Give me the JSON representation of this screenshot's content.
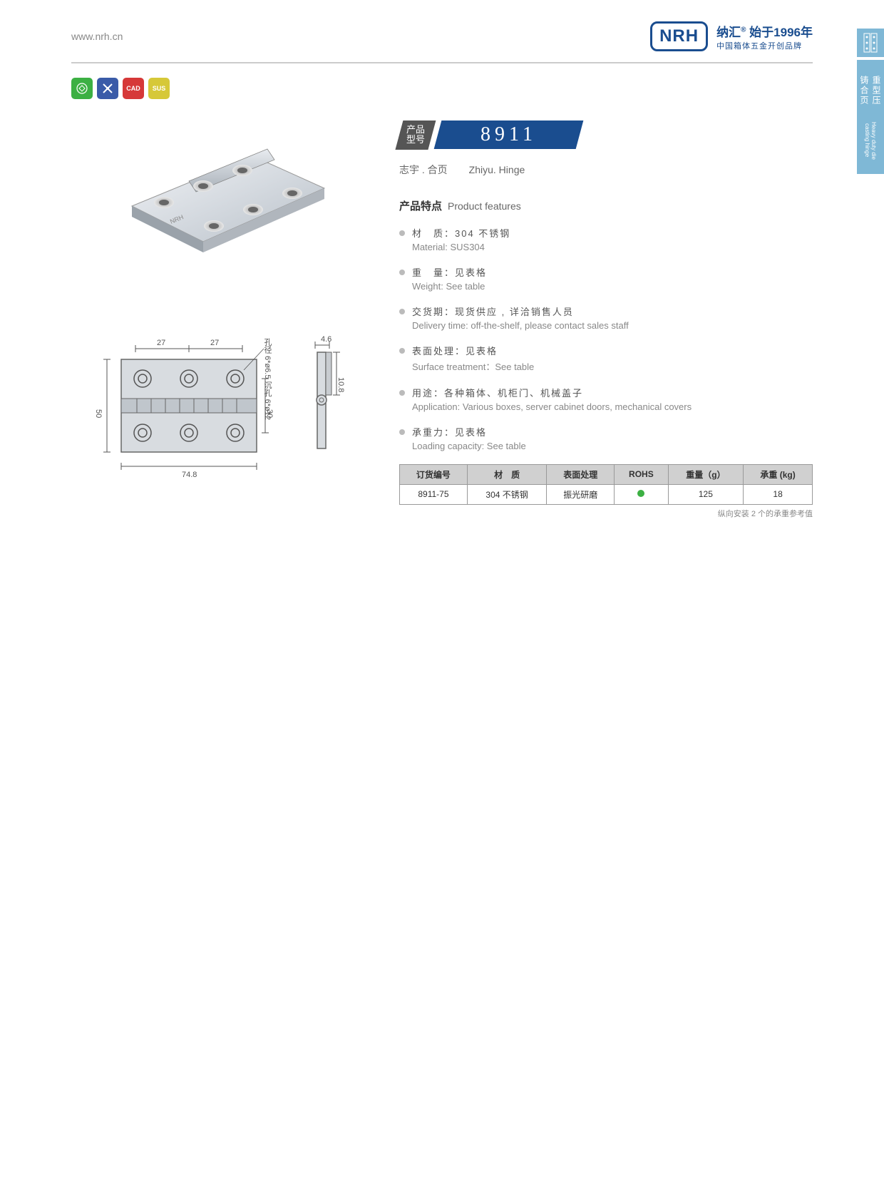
{
  "header": {
    "url": "www.nrh.cn",
    "logo": "NRH",
    "brand_cn": "纳汇",
    "brand_reg": "®",
    "brand_year": "始于1996年",
    "brand_sub": "中国箱体五金开创品牌"
  },
  "side": {
    "tab1_cn": "重型压铸合页",
    "tab1_en": "Heavy duty die casting hinge"
  },
  "badges": {
    "b1": "",
    "b2": "",
    "b3": "CAD",
    "b4": "SUS"
  },
  "model": {
    "label": "产品\n型号",
    "number": "8911"
  },
  "subtitle": {
    "cn": "志宇 . 合页",
    "en": "Zhiyu. Hinge"
  },
  "features_title": {
    "cn": "产品特点",
    "en": "Product features"
  },
  "features": [
    {
      "cn": "材　质：304 不锈钢",
      "en": "Material: SUS304"
    },
    {
      "cn": "重　量：见表格",
      "en": "Weight: See table"
    },
    {
      "cn": "交货期：现货供应 , 详洽销售人员",
      "en": "Delivery time: off-the-shelf, please contact sales staff"
    },
    {
      "cn": "表面处理：见表格",
      "en": "Surface treatment：See table"
    },
    {
      "cn": "用途：各种箱体、机柜门、机械盖子",
      "en": "Application: Various boxes, server cabinet doors, mechanical covers"
    },
    {
      "cn": "承重力：见表格",
      "en": "Loading capacity: See table"
    }
  ],
  "table": {
    "headers": [
      "订货编号",
      "材　质",
      "表面处理",
      "ROHS",
      "重量（g）",
      "承重 (kg)"
    ],
    "rows": [
      [
        "8911-75",
        "304 不锈钢",
        "振光研磨",
        "●",
        "125",
        "18"
      ]
    ],
    "note": "纵向安装 2 个的承重参考值"
  },
  "drawing": {
    "dims": {
      "w1": "27",
      "w2": "27",
      "h_total": "50",
      "h_inner": "30",
      "width": "74.8",
      "side_w": "4.6",
      "side_h": "10.8",
      "hole_note": "孔径 6*ø6.5\n沉孔 6*ø12"
    }
  }
}
